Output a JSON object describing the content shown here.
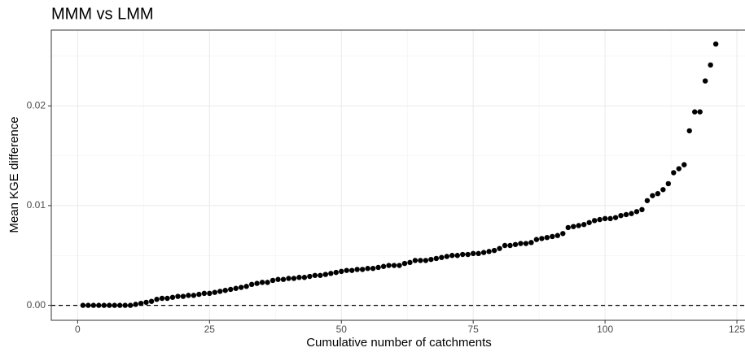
{
  "chart_data": {
    "type": "scatter",
    "title": "MMM vs LMM",
    "x_label": "Cumulative number of catchments",
    "y_label": "Mean KGE difference",
    "x": [
      1,
      2,
      3,
      4,
      5,
      6,
      7,
      8,
      9,
      10,
      11,
      12,
      13,
      14,
      15,
      16,
      17,
      18,
      19,
      20,
      21,
      22,
      23,
      24,
      25,
      26,
      27,
      28,
      29,
      30,
      31,
      32,
      33,
      34,
      35,
      36,
      37,
      38,
      39,
      40,
      41,
      42,
      43,
      44,
      45,
      46,
      47,
      48,
      49,
      50,
      51,
      52,
      53,
      54,
      55,
      56,
      57,
      58,
      59,
      60,
      61,
      62,
      63,
      64,
      65,
      66,
      67,
      68,
      69,
      70,
      71,
      72,
      73,
      74,
      75,
      76,
      77,
      78,
      79,
      80,
      81,
      82,
      83,
      84,
      85,
      86,
      87,
      88,
      89,
      90,
      91,
      92,
      93,
      94,
      95,
      96,
      97,
      98,
      99,
      100,
      101,
      102,
      103,
      104,
      105,
      106,
      107,
      108,
      109,
      110,
      111,
      112,
      113,
      114,
      115,
      116,
      117,
      118,
      119,
      120,
      121
    ],
    "values": [
      0,
      0,
      0,
      0,
      0,
      0,
      0,
      0,
      0,
      0,
      0.0001,
      0.0002,
      0.0003,
      0.0004,
      0.0006,
      0.0007,
      0.0007,
      0.0008,
      0.0009,
      0.0009,
      0.001,
      0.001,
      0.0011,
      0.0012,
      0.0012,
      0.0013,
      0.0014,
      0.0015,
      0.0016,
      0.0017,
      0.0018,
      0.0019,
      0.0021,
      0.0022,
      0.0023,
      0.0023,
      0.0025,
      0.0026,
      0.0026,
      0.0027,
      0.0027,
      0.0028,
      0.0028,
      0.0029,
      0.003,
      0.003,
      0.0031,
      0.0032,
      0.0033,
      0.0034,
      0.0035,
      0.0035,
      0.0036,
      0.0036,
      0.0037,
      0.0037,
      0.0038,
      0.0039,
      0.004,
      0.004,
      0.004,
      0.0042,
      0.0043,
      0.0045,
      0.0045,
      0.0045,
      0.0046,
      0.0047,
      0.0048,
      0.0049,
      0.005,
      0.005,
      0.0051,
      0.0051,
      0.0052,
      0.0052,
      0.0053,
      0.0054,
      0.0055,
      0.0057,
      0.006,
      0.006,
      0.0061,
      0.0062,
      0.0062,
      0.0063,
      0.0066,
      0.0067,
      0.0068,
      0.0069,
      0.007,
      0.0072,
      0.0078,
      0.0079,
      0.008,
      0.0081,
      0.0083,
      0.0085,
      0.0086,
      0.0087,
      0.0087,
      0.0088,
      0.009,
      0.0091,
      0.0092,
      0.0094,
      0.0096,
      0.0105,
      0.011,
      0.0112,
      0.0116,
      0.0122,
      0.0133,
      0.0137,
      0.0141,
      0.0175,
      0.0194,
      0.0194,
      0.0225,
      0.0241,
      0.0262
    ],
    "color": "#000000",
    "xlim": [
      -5,
      127
    ],
    "ylim": [
      -0.0015,
      0.0276
    ],
    "xticks": [
      0,
      25,
      50,
      75,
      100,
      125
    ],
    "yticks": [
      {
        "value": 0,
        "label": "0.00"
      },
      {
        "value": 0.01,
        "label": "0.01"
      },
      {
        "value": 0.02,
        "label": "0.02"
      }
    ],
    "x_minor_ticks": [
      12.5,
      37.5,
      62.5,
      87.5,
      112.5
    ],
    "y_minor_ticks": [
      0.005,
      0.015,
      0.025
    ],
    "hline": 0,
    "grid": true
  }
}
